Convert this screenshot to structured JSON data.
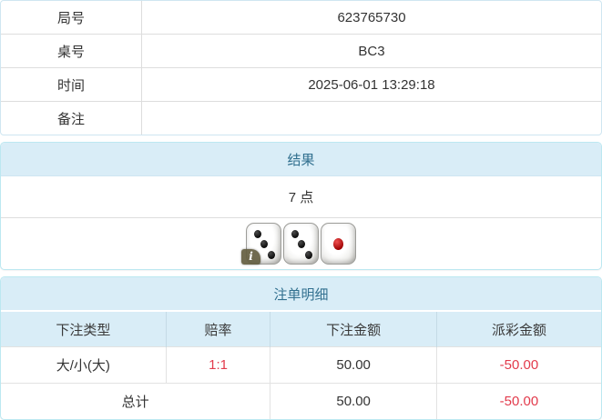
{
  "info": {
    "rows": [
      {
        "label": "局号",
        "value": "623765730"
      },
      {
        "label": "桌号",
        "value": "BC3"
      },
      {
        "label": "时间",
        "value": "2025-06-01 13:29:18"
      },
      {
        "label": "备注",
        "value": ""
      }
    ]
  },
  "result": {
    "title": "结果",
    "points": "7 点",
    "dice": [
      {
        "value": 3,
        "color": "black"
      },
      {
        "value": 3,
        "color": "black"
      },
      {
        "value": 1,
        "color": "red"
      }
    ],
    "info_badge": "i"
  },
  "bets": {
    "title": "注单明细",
    "columns": [
      "下注类型",
      "赔率",
      "下注金额",
      "派彩金额"
    ],
    "rows": [
      {
        "type": "大/小(大)",
        "odds": "1:1",
        "amount": "50.00",
        "payout": "-50.00"
      }
    ],
    "total": {
      "label": "总计",
      "amount": "50.00",
      "payout": "-50.00"
    }
  },
  "colors": {
    "panel_border": "#bce8f1",
    "heading_bg": "#d9edf7",
    "heading_text": "#31708f",
    "negative_text": "#e23b4c",
    "body_text": "#333333"
  }
}
